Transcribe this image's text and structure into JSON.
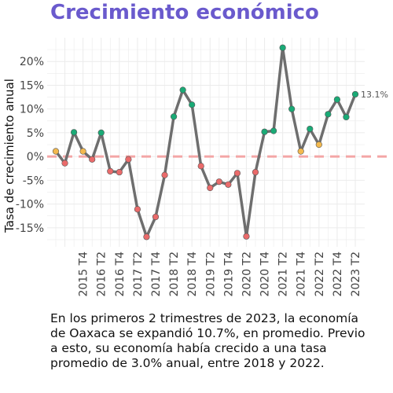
{
  "chart_data": {
    "type": "line",
    "title": "Crecimiento económico",
    "ylabel": "Tasa de crecimiento anual",
    "xlabel": "",
    "ylim": [
      -19,
      25
    ],
    "y_ticks": [
      -15,
      -10,
      -5,
      0,
      5,
      10,
      15,
      20
    ],
    "y_tick_labels": [
      "-15%",
      "-10%",
      "-5%",
      "0%",
      "5%",
      "10%",
      "15%",
      "20%"
    ],
    "x_tick_labels": [
      "2015 T4",
      "2016 T2",
      "2016 T4",
      "2017 T2",
      "2017 T4",
      "2018 T2",
      "2018 T4",
      "2019 T2",
      "2019 T4",
      "2020 T2",
      "2020 T4",
      "2021 T2",
      "2021 T4",
      "2022 T2",
      "2022 T4",
      "2023 T2"
    ],
    "x": [
      "2015 T1",
      "2015 T2",
      "2015 T3",
      "2015 T4",
      "2016 T1",
      "2016 T2",
      "2016 T3",
      "2016 T4",
      "2017 T1",
      "2017 T2",
      "2017 T3",
      "2017 T4",
      "2018 T1",
      "2018 T2",
      "2018 T3",
      "2018 T4",
      "2019 T1",
      "2019 T2",
      "2019 T3",
      "2019 T4",
      "2020 T1",
      "2020 T2",
      "2020 T3",
      "2020 T4",
      "2021 T1",
      "2021 T2",
      "2021 T3",
      "2021 T4",
      "2022 T1",
      "2022 T2",
      "2022 T3",
      "2022 T4",
      "2023 T1",
      "2023 T2"
    ],
    "series": [
      {
        "values": [
          1.1,
          -1.4,
          5.1,
          1.1,
          -0.6,
          5.0,
          -3.1,
          -3.3,
          -0.6,
          -11.1,
          -16.9,
          -12.7,
          -3.9,
          8.4,
          14.0,
          10.9,
          -2.0,
          -6.6,
          -5.3,
          -5.9,
          -3.5,
          -16.8,
          -3.3,
          5.2,
          5.4,
          22.9,
          10.0,
          1.1,
          5.8,
          2.5,
          8.9,
          12.0,
          8.3,
          13.1
        ],
        "point_colors": [
          "#f3b94e",
          "#ea6b6b",
          "#1aaa76",
          "#f3b94e",
          "#ea6b6b",
          "#1aaa76",
          "#ea6b6b",
          "#ea6b6b",
          "#ea6b6b",
          "#ea6b6b",
          "#ea6b6b",
          "#ea6b6b",
          "#ea6b6b",
          "#1aaa76",
          "#1aaa76",
          "#1aaa76",
          "#ea6b6b",
          "#ea6b6b",
          "#ea6b6b",
          "#ea6b6b",
          "#ea6b6b",
          "#ea6b6b",
          "#ea6b6b",
          "#1aaa76",
          "#1aaa76",
          "#1aaa76",
          "#1aaa76",
          "#f3b94e",
          "#1aaa76",
          "#f3b94e",
          "#1aaa76",
          "#1aaa76",
          "#1aaa76",
          "#1aaa76"
        ]
      }
    ],
    "end_label": "13.1%",
    "reference_line": 0,
    "grid": true,
    "colors": {
      "line": "#6e6e6e",
      "reference_line": "#f4a6a6",
      "grid": "#ebebeb",
      "title": "#6a5acd",
      "growth_high": "#1aaa76",
      "growth_low": "#f3b94e",
      "decline": "#ea6b6b"
    }
  },
  "caption": "En los primeros 2 trimestres de 2023, la economía de Oaxaca se expandió 10.7%, en promedio. Previo a esto, su economía había crecido a una tasa promedio de 3.0% anual, entre 2018 y 2022."
}
